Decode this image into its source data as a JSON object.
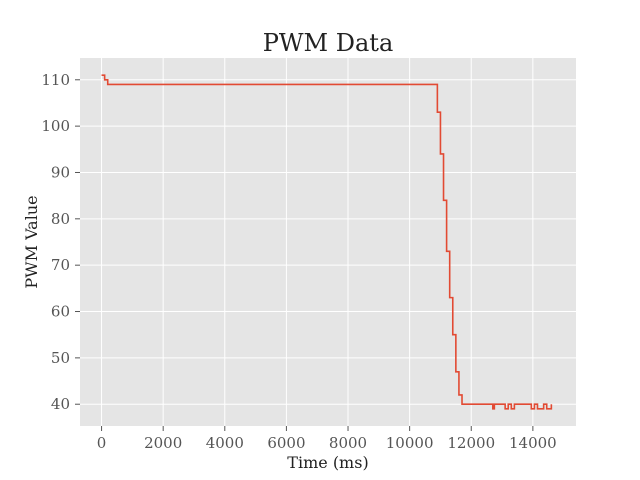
{
  "chart_data": {
    "type": "line",
    "title": "PWM Data",
    "xlabel": "Time (ms)",
    "ylabel": "PWM Value",
    "xlim": [
      -700,
      15400
    ],
    "ylim": [
      35.3,
      114.7
    ],
    "x_ticks": [
      0,
      2000,
      4000,
      6000,
      8000,
      10000,
      12000,
      14000
    ],
    "y_ticks": [
      40,
      50,
      60,
      70,
      80,
      90,
      100,
      110
    ],
    "x_tick_labels": [
      "0",
      "2000",
      "4000",
      "6000",
      "8000",
      "10000",
      "12000",
      "14000"
    ],
    "y_tick_labels": [
      "40",
      "50",
      "60",
      "70",
      "80",
      "90",
      "100",
      "110"
    ],
    "step": "post",
    "grid": true,
    "style": "ggplot",
    "colors": {
      "line": "#E24A33",
      "plot_bg": "#E5E5E5",
      "grid": "#FFFFFF",
      "text": "#222222",
      "ticks": "#555555"
    },
    "series": [
      {
        "x": [
          0,
          100,
          200,
          10900,
          11000,
          11100,
          11200,
          11300,
          11400,
          11500,
          11600,
          11700,
          11800,
          12700,
          12750,
          12850,
          13100,
          13200,
          13300,
          13400,
          13950,
          14050,
          14150,
          14350,
          14450,
          14600
        ],
        "y": [
          111,
          110,
          109,
          103,
          94,
          84,
          73,
          63,
          55,
          47,
          42,
          40,
          40,
          39,
          40,
          40,
          39,
          40,
          39,
          40,
          39,
          40,
          39,
          40,
          39,
          40
        ]
      }
    ]
  }
}
